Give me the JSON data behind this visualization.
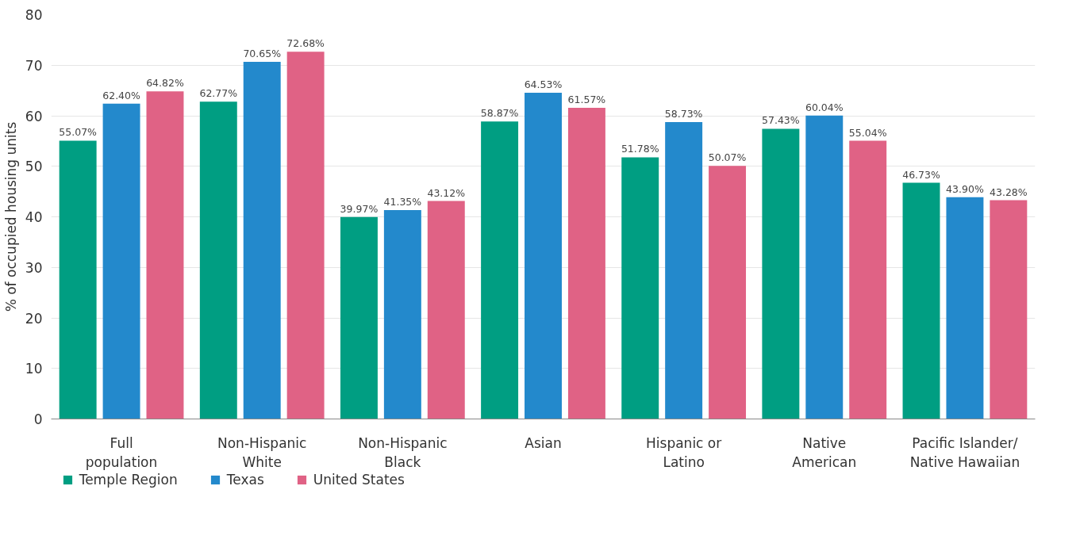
{
  "chart_data": {
    "type": "bar",
    "ylabel": "% of occupied housing units",
    "categories": [
      "Full\npopulation",
      "Non-Hispanic\nWhite",
      "Non-Hispanic\nBlack",
      "Asian",
      "Hispanic or\nLatino",
      "Native\nAmerican",
      "Pacific Islander/\nNative Hawaiian"
    ],
    "series": [
      {
        "name": "Temple Region",
        "color": "#009e82",
        "values": [
          55.07,
          62.77,
          39.97,
          58.87,
          51.78,
          57.43,
          46.73
        ],
        "value_labels": [
          "55.07%",
          "62.77%",
          "39.97%",
          "58.87%",
          "51.78%",
          "57.43%",
          "46.73%"
        ]
      },
      {
        "name": "Texas",
        "color": "#2389cc",
        "values": [
          62.4,
          70.65,
          41.35,
          64.53,
          58.73,
          60.04,
          43.9
        ],
        "value_labels": [
          "62.40%",
          "70.65%",
          "41.35%",
          "64.53%",
          "58.73%",
          "60.04%",
          "43.90%"
        ]
      },
      {
        "name": "United States",
        "color": "#e06285",
        "values": [
          64.82,
          72.68,
          43.12,
          61.57,
          50.07,
          55.04,
          43.28
        ],
        "value_labels": [
          "64.82%",
          "72.68%",
          "43.12%",
          "61.57%",
          "50.07%",
          "55.04%",
          "43.28%"
        ]
      }
    ],
    "ylim": [
      0,
      80
    ],
    "yticks": [
      0,
      10,
      20,
      30,
      40,
      50,
      60,
      70,
      80
    ],
    "grid": "y",
    "legend": "bottom left"
  }
}
